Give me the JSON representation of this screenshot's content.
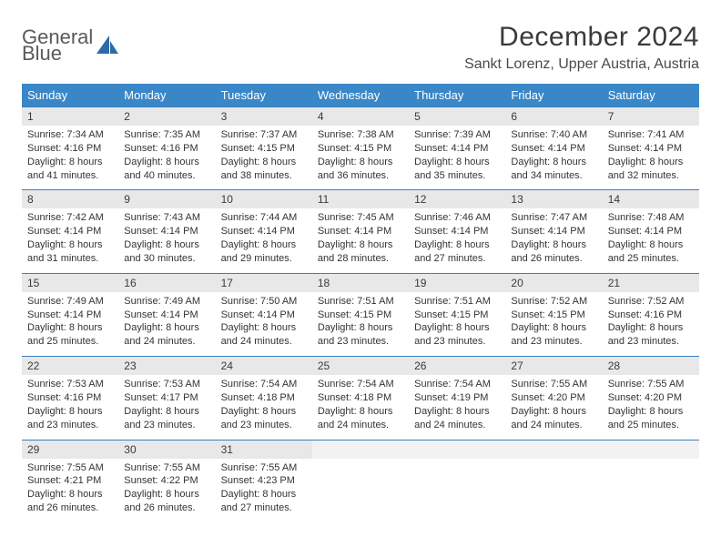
{
  "logo": {
    "word1": "General",
    "word2": "Blue"
  },
  "title": "December 2024",
  "location": "Sankt Lorenz, Upper Austria, Austria",
  "colors": {
    "header_bg": "#3a87c8",
    "header_text": "#ffffff",
    "daynum_bg": "#e8e8e8",
    "rule": "#3a7fbf",
    "logo_gray": "#5a5a5a",
    "logo_blue": "#3a7fbf"
  },
  "weekdays": [
    "Sunday",
    "Monday",
    "Tuesday",
    "Wednesday",
    "Thursday",
    "Friday",
    "Saturday"
  ],
  "weeks": [
    [
      {
        "n": "1",
        "rise": "Sunrise: 7:34 AM",
        "set": "Sunset: 4:16 PM",
        "d1": "Daylight: 8 hours",
        "d2": "and 41 minutes."
      },
      {
        "n": "2",
        "rise": "Sunrise: 7:35 AM",
        "set": "Sunset: 4:16 PM",
        "d1": "Daylight: 8 hours",
        "d2": "and 40 minutes."
      },
      {
        "n": "3",
        "rise": "Sunrise: 7:37 AM",
        "set": "Sunset: 4:15 PM",
        "d1": "Daylight: 8 hours",
        "d2": "and 38 minutes."
      },
      {
        "n": "4",
        "rise": "Sunrise: 7:38 AM",
        "set": "Sunset: 4:15 PM",
        "d1": "Daylight: 8 hours",
        "d2": "and 36 minutes."
      },
      {
        "n": "5",
        "rise": "Sunrise: 7:39 AM",
        "set": "Sunset: 4:14 PM",
        "d1": "Daylight: 8 hours",
        "d2": "and 35 minutes."
      },
      {
        "n": "6",
        "rise": "Sunrise: 7:40 AM",
        "set": "Sunset: 4:14 PM",
        "d1": "Daylight: 8 hours",
        "d2": "and 34 minutes."
      },
      {
        "n": "7",
        "rise": "Sunrise: 7:41 AM",
        "set": "Sunset: 4:14 PM",
        "d1": "Daylight: 8 hours",
        "d2": "and 32 minutes."
      }
    ],
    [
      {
        "n": "8",
        "rise": "Sunrise: 7:42 AM",
        "set": "Sunset: 4:14 PM",
        "d1": "Daylight: 8 hours",
        "d2": "and 31 minutes."
      },
      {
        "n": "9",
        "rise": "Sunrise: 7:43 AM",
        "set": "Sunset: 4:14 PM",
        "d1": "Daylight: 8 hours",
        "d2": "and 30 minutes."
      },
      {
        "n": "10",
        "rise": "Sunrise: 7:44 AM",
        "set": "Sunset: 4:14 PM",
        "d1": "Daylight: 8 hours",
        "d2": "and 29 minutes."
      },
      {
        "n": "11",
        "rise": "Sunrise: 7:45 AM",
        "set": "Sunset: 4:14 PM",
        "d1": "Daylight: 8 hours",
        "d2": "and 28 minutes."
      },
      {
        "n": "12",
        "rise": "Sunrise: 7:46 AM",
        "set": "Sunset: 4:14 PM",
        "d1": "Daylight: 8 hours",
        "d2": "and 27 minutes."
      },
      {
        "n": "13",
        "rise": "Sunrise: 7:47 AM",
        "set": "Sunset: 4:14 PM",
        "d1": "Daylight: 8 hours",
        "d2": "and 26 minutes."
      },
      {
        "n": "14",
        "rise": "Sunrise: 7:48 AM",
        "set": "Sunset: 4:14 PM",
        "d1": "Daylight: 8 hours",
        "d2": "and 25 minutes."
      }
    ],
    [
      {
        "n": "15",
        "rise": "Sunrise: 7:49 AM",
        "set": "Sunset: 4:14 PM",
        "d1": "Daylight: 8 hours",
        "d2": "and 25 minutes."
      },
      {
        "n": "16",
        "rise": "Sunrise: 7:49 AM",
        "set": "Sunset: 4:14 PM",
        "d1": "Daylight: 8 hours",
        "d2": "and 24 minutes."
      },
      {
        "n": "17",
        "rise": "Sunrise: 7:50 AM",
        "set": "Sunset: 4:14 PM",
        "d1": "Daylight: 8 hours",
        "d2": "and 24 minutes."
      },
      {
        "n": "18",
        "rise": "Sunrise: 7:51 AM",
        "set": "Sunset: 4:15 PM",
        "d1": "Daylight: 8 hours",
        "d2": "and 23 minutes."
      },
      {
        "n": "19",
        "rise": "Sunrise: 7:51 AM",
        "set": "Sunset: 4:15 PM",
        "d1": "Daylight: 8 hours",
        "d2": "and 23 minutes."
      },
      {
        "n": "20",
        "rise": "Sunrise: 7:52 AM",
        "set": "Sunset: 4:15 PM",
        "d1": "Daylight: 8 hours",
        "d2": "and 23 minutes."
      },
      {
        "n": "21",
        "rise": "Sunrise: 7:52 AM",
        "set": "Sunset: 4:16 PM",
        "d1": "Daylight: 8 hours",
        "d2": "and 23 minutes."
      }
    ],
    [
      {
        "n": "22",
        "rise": "Sunrise: 7:53 AM",
        "set": "Sunset: 4:16 PM",
        "d1": "Daylight: 8 hours",
        "d2": "and 23 minutes."
      },
      {
        "n": "23",
        "rise": "Sunrise: 7:53 AM",
        "set": "Sunset: 4:17 PM",
        "d1": "Daylight: 8 hours",
        "d2": "and 23 minutes."
      },
      {
        "n": "24",
        "rise": "Sunrise: 7:54 AM",
        "set": "Sunset: 4:18 PM",
        "d1": "Daylight: 8 hours",
        "d2": "and 23 minutes."
      },
      {
        "n": "25",
        "rise": "Sunrise: 7:54 AM",
        "set": "Sunset: 4:18 PM",
        "d1": "Daylight: 8 hours",
        "d2": "and 24 minutes."
      },
      {
        "n": "26",
        "rise": "Sunrise: 7:54 AM",
        "set": "Sunset: 4:19 PM",
        "d1": "Daylight: 8 hours",
        "d2": "and 24 minutes."
      },
      {
        "n": "27",
        "rise": "Sunrise: 7:55 AM",
        "set": "Sunset: 4:20 PM",
        "d1": "Daylight: 8 hours",
        "d2": "and 24 minutes."
      },
      {
        "n": "28",
        "rise": "Sunrise: 7:55 AM",
        "set": "Sunset: 4:20 PM",
        "d1": "Daylight: 8 hours",
        "d2": "and 25 minutes."
      }
    ],
    [
      {
        "n": "29",
        "rise": "Sunrise: 7:55 AM",
        "set": "Sunset: 4:21 PM",
        "d1": "Daylight: 8 hours",
        "d2": "and 26 minutes."
      },
      {
        "n": "30",
        "rise": "Sunrise: 7:55 AM",
        "set": "Sunset: 4:22 PM",
        "d1": "Daylight: 8 hours",
        "d2": "and 26 minutes."
      },
      {
        "n": "31",
        "rise": "Sunrise: 7:55 AM",
        "set": "Sunset: 4:23 PM",
        "d1": "Daylight: 8 hours",
        "d2": "and 27 minutes."
      },
      null,
      null,
      null,
      null
    ]
  ]
}
